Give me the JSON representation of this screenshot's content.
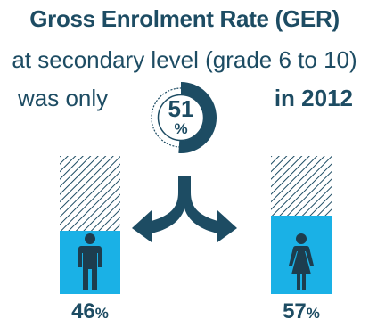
{
  "header": {
    "title": "Gross Enrolment Rate (GER)",
    "subtitle": "at secondary level (grade 6 to 10)",
    "line_left": "was only",
    "line_right": "in 2012"
  },
  "colors": {
    "navy": "#1d4c63",
    "blue": "#1ab1e6",
    "hatch": "#1d4c63"
  },
  "chart_data": {
    "type": "bar",
    "categories": [
      "male-icon",
      "female-icon"
    ],
    "values": [
      46,
      57
    ],
    "value_labels": [
      "46",
      "57"
    ],
    "unit": "%",
    "ylim": [
      0,
      100
    ],
    "overall": {
      "value": 51,
      "label": "51",
      "unit": "%"
    }
  }
}
